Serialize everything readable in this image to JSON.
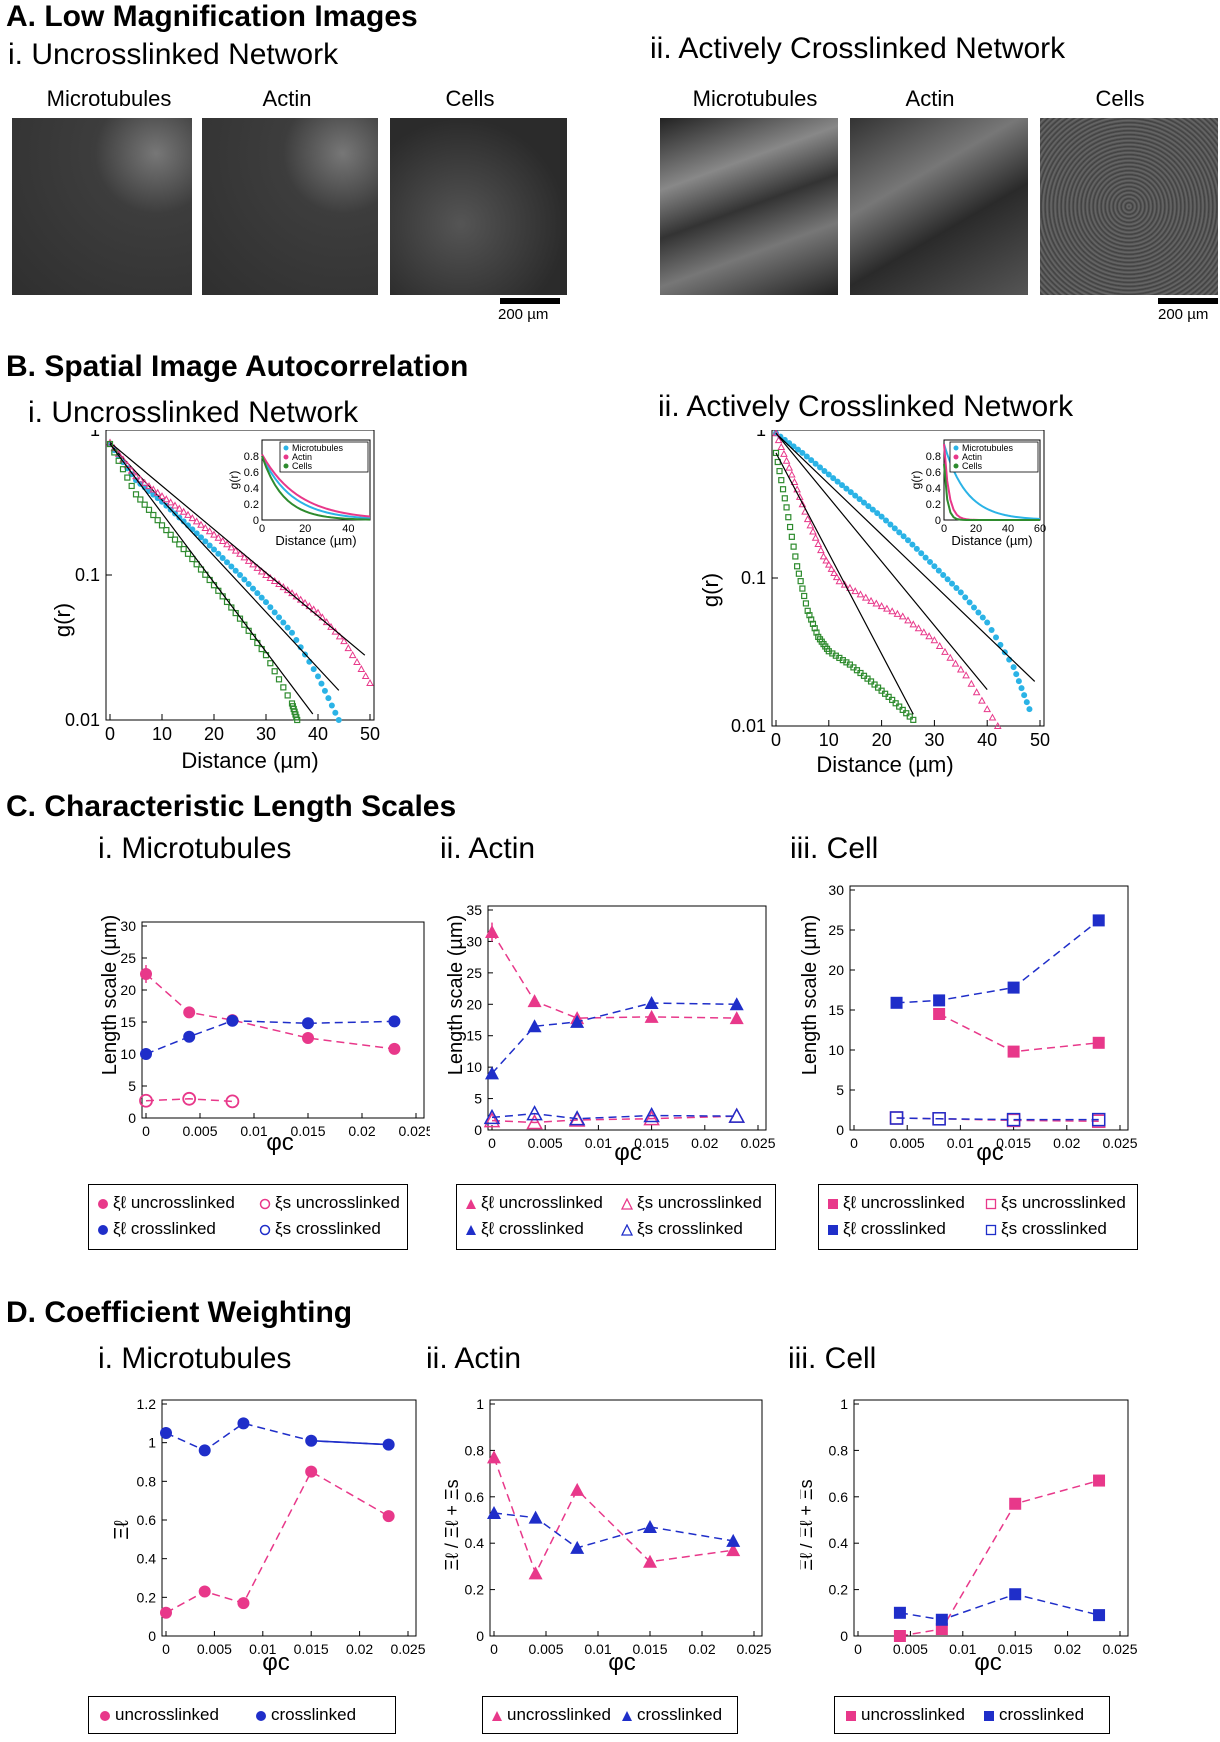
{
  "sections": {
    "A": "A. Low Magnification Images",
    "B": "B. Spatial Image Autocorrelation",
    "C": "C. Characteristic Length Scales",
    "D": "D. Coefficient Weighting"
  },
  "panelA": {
    "i_title": "i. Uncrosslinked Network",
    "ii_title": "ii. Actively Crosslinked Network",
    "labels": [
      "Microtubules",
      "Actin",
      "Cells"
    ],
    "scale_bar": "200 µm"
  },
  "panelB": {
    "i_title": "i. Uncrosslinked Network",
    "ii_title": "ii. Actively Crosslinked Network",
    "ylabel": "g(r)",
    "xlabel": "Distance (µm)",
    "inset_ylabel": "g(r)",
    "inset_xlabel": "Distance (µm)",
    "legend": [
      "Microtubules",
      "Actin",
      "Cells"
    ]
  },
  "panelC": {
    "titles": [
      "i. Microtubules",
      "ii. Actin",
      "iii. Cell"
    ],
    "ylabel": "Length scale (µm)",
    "xlabel": "φc",
    "legend": [
      "ξℓ uncrosslinked",
      "ξs uncrosslinked",
      "ξℓ crosslinked",
      "ξs crosslinked"
    ]
  },
  "panelD": {
    "titles": [
      "i. Microtubules",
      "ii. Actin",
      "iii. Cell"
    ],
    "ylabel_i": "Ξℓ",
    "ylabel_ii": "Ξℓ / Ξℓ + Ξs",
    "xlabel": "φc",
    "legend": [
      "uncrosslinked",
      "crosslinked"
    ]
  },
  "colors": {
    "pink": "#e8388a",
    "blue": "#1f2ec9",
    "cyan": "#2bb3e6",
    "green": "#2e8b2e",
    "black": "#000000"
  },
  "chart_data": [
    {
      "type": "scatter",
      "id": "B-i",
      "xlabel": "Distance (µm)",
      "ylabel": "g(r)",
      "yscale": "log",
      "xlim": [
        0,
        50
      ],
      "ylim": [
        0.01,
        1
      ],
      "xticks": [
        0,
        10,
        20,
        30,
        40,
        50
      ],
      "yticks": [
        0.01,
        0.1,
        1
      ],
      "series": [
        {
          "name": "Microtubules",
          "color": "#2bb3e6",
          "x": [
            0,
            5,
            10,
            15,
            20,
            25,
            30,
            35,
            40,
            44
          ],
          "y": [
            0.8,
            0.45,
            0.32,
            0.22,
            0.15,
            0.1,
            0.065,
            0.04,
            0.02,
            0.01
          ]
        },
        {
          "name": "Actin",
          "color": "#e8388a",
          "x": [
            0,
            5,
            10,
            15,
            20,
            25,
            30,
            35,
            40,
            45,
            50
          ],
          "y": [
            0.82,
            0.48,
            0.35,
            0.26,
            0.19,
            0.14,
            0.1,
            0.075,
            0.055,
            0.035,
            0.018
          ]
        },
        {
          "name": "Cells",
          "color": "#2e8b2e",
          "x": [
            0,
            5,
            10,
            15,
            20,
            25,
            30,
            35,
            36
          ],
          "y": [
            0.8,
            0.36,
            0.22,
            0.14,
            0.085,
            0.05,
            0.028,
            0.013,
            0.01
          ]
        }
      ]
    },
    {
      "type": "scatter",
      "id": "B-ii",
      "xlabel": "Distance (µm)",
      "ylabel": "g(r)",
      "yscale": "log",
      "xlim": [
        0,
        50
      ],
      "ylim": [
        0.01,
        1
      ],
      "xticks": [
        0,
        10,
        20,
        30,
        40,
        50
      ],
      "yticks": [
        0.01,
        0.1,
        1
      ],
      "series": [
        {
          "name": "Microtubules",
          "color": "#2bb3e6",
          "x": [
            0,
            5,
            10,
            15,
            20,
            25,
            30,
            35,
            40,
            45,
            48
          ],
          "y": [
            0.95,
            0.7,
            0.5,
            0.36,
            0.26,
            0.18,
            0.12,
            0.08,
            0.05,
            0.025,
            0.013
          ]
        },
        {
          "name": "Actin",
          "color": "#e8388a",
          "x": [
            0,
            3,
            6,
            9,
            12,
            18,
            24,
            30,
            36,
            42
          ],
          "y": [
            0.95,
            0.5,
            0.25,
            0.14,
            0.095,
            0.07,
            0.055,
            0.038,
            0.022,
            0.01
          ]
        },
        {
          "name": "Cells",
          "color": "#2e8b2e",
          "x": [
            0,
            2,
            4,
            6,
            8,
            10,
            14,
            18,
            22,
            26
          ],
          "y": [
            0.7,
            0.3,
            0.12,
            0.06,
            0.04,
            0.032,
            0.026,
            0.02,
            0.015,
            0.011
          ]
        }
      ]
    },
    {
      "type": "scatter",
      "id": "C-i",
      "xlabel": "φc",
      "ylabel": "Length scale (µm)",
      "xlim": [
        0,
        0.025
      ],
      "ylim": [
        0,
        30
      ],
      "series": [
        {
          "name": "ξℓ uncrosslinked",
          "x": [
            0,
            0.004,
            0.008,
            0.015,
            0.023
          ],
          "y": [
            22.5,
            16.5,
            15.3,
            12.5,
            10.8
          ]
        },
        {
          "name": "ξℓ crosslinked",
          "x": [
            0,
            0.004,
            0.008,
            0.015,
            0.023
          ],
          "y": [
            10,
            12.7,
            15.2,
            14.8,
            15.1
          ]
        },
        {
          "name": "ξs uncrosslinked",
          "x": [
            0,
            0.004,
            0.008
          ],
          "y": [
            2.7,
            3,
            2.6
          ]
        }
      ]
    },
    {
      "type": "scatter",
      "id": "C-ii",
      "xlabel": "φc",
      "ylabel": "Length scale (µm)",
      "xlim": [
        0,
        0.025
      ],
      "ylim": [
        0,
        35
      ],
      "series": [
        {
          "name": "ξℓ uncrosslinked",
          "x": [
            0,
            0.004,
            0.008,
            0.015,
            0.023
          ],
          "y": [
            31.5,
            20.5,
            17.8,
            18,
            17.8
          ]
        },
        {
          "name": "ξℓ crosslinked",
          "x": [
            0,
            0.004,
            0.008,
            0.015,
            0.023
          ],
          "y": [
            9,
            16.5,
            17.2,
            20.2,
            20
          ]
        },
        {
          "name": "ξs uncrosslinked",
          "x": [
            0,
            0.004,
            0.008,
            0.015,
            0.023
          ],
          "y": [
            1.5,
            1.2,
            1.6,
            1.8,
            2.2
          ]
        },
        {
          "name": "ξs crosslinked",
          "x": [
            0,
            0.004,
            0.008,
            0.015,
            0.023
          ],
          "y": [
            2,
            2.6,
            1.8,
            2.3,
            2.2
          ]
        }
      ]
    },
    {
      "type": "scatter",
      "id": "C-iii",
      "xlabel": "φc",
      "ylabel": "Length scale (µm)",
      "xlim": [
        0,
        0.025
      ],
      "ylim": [
        0,
        30
      ],
      "series": [
        {
          "name": "ξℓ uncrosslinked",
          "x": [
            0.008,
            0.015,
            0.023
          ],
          "y": [
            14.5,
            9.8,
            10.9
          ]
        },
        {
          "name": "ξℓ crosslinked",
          "x": [
            0.004,
            0.008,
            0.015,
            0.023
          ],
          "y": [
            15.9,
            16.2,
            17.8,
            26.2
          ]
        },
        {
          "name": "ξs uncrosslinked",
          "x": [
            0.004,
            0.008,
            0.015,
            0.023
          ],
          "y": [
            1.5,
            1.4,
            1.2,
            1.1
          ]
        },
        {
          "name": "ξs crosslinked",
          "x": [
            0.004,
            0.008,
            0.015,
            0.023
          ],
          "y": [
            1.5,
            1.4,
            1.3,
            1.3
          ]
        }
      ]
    },
    {
      "type": "line",
      "id": "D-i",
      "xlabel": "φc",
      "ylabel": "Ξℓ",
      "xlim": [
        0,
        0.025
      ],
      "ylim": [
        0,
        1.2
      ],
      "series": [
        {
          "name": "uncrosslinked",
          "x": [
            0,
            0.004,
            0.008,
            0.015,
            0.023
          ],
          "y": [
            0.12,
            0.23,
            0.17,
            0.85,
            0.62
          ]
        },
        {
          "name": "crosslinked",
          "x": [
            0,
            0.004,
            0.008,
            0.015,
            0.023
          ],
          "y": [
            1.05,
            0.96,
            1.1,
            1.01,
            0.99
          ]
        }
      ]
    },
    {
      "type": "line",
      "id": "D-ii",
      "xlabel": "φc",
      "ylabel": "Ξℓ / Ξℓ + Ξs",
      "xlim": [
        0,
        0.025
      ],
      "ylim": [
        0,
        1
      ],
      "series": [
        {
          "name": "uncrosslinked",
          "x": [
            0,
            0.004,
            0.008,
            0.015,
            0.023
          ],
          "y": [
            0.77,
            0.27,
            0.63,
            0.32,
            0.37
          ]
        },
        {
          "name": "crosslinked",
          "x": [
            0,
            0.004,
            0.008,
            0.015,
            0.023
          ],
          "y": [
            0.53,
            0.51,
            0.38,
            0.47,
            0.41
          ]
        }
      ]
    },
    {
      "type": "line",
      "id": "D-iii",
      "xlabel": "φc",
      "ylabel": "Ξℓ / Ξℓ + Ξs",
      "xlim": [
        0,
        0.025
      ],
      "ylim": [
        0,
        1
      ],
      "series": [
        {
          "name": "uncrosslinked",
          "x": [
            0.004,
            0.008,
            0.015,
            0.023
          ],
          "y": [
            0,
            0.03,
            0.57,
            0.67
          ]
        },
        {
          "name": "crosslinked",
          "x": [
            0.004,
            0.008,
            0.015,
            0.023
          ],
          "y": [
            0.1,
            0.07,
            0.18,
            0.09
          ]
        }
      ]
    }
  ]
}
